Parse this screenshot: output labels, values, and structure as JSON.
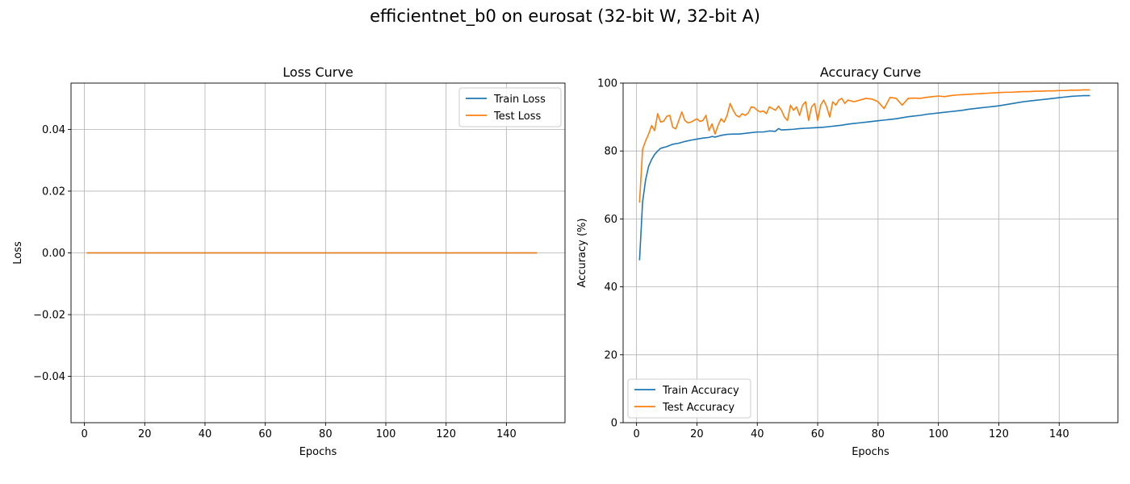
{
  "figure": {
    "title": "efficientnet_b0 on eurosat (32-bit W, 32-bit A)"
  },
  "chart_data": [
    {
      "type": "line",
      "title": "Loss Curve",
      "xlabel": "Epochs",
      "ylabel": "Loss",
      "xlim": [
        -4.45,
        159.45
      ],
      "ylim": [
        -0.055,
        0.055
      ],
      "xticks": [
        0,
        20,
        40,
        60,
        80,
        100,
        120,
        140
      ],
      "xtick_labels": [
        "0",
        "20",
        "40",
        "60",
        "80",
        "100",
        "120",
        "140"
      ],
      "yticks": [
        -0.04,
        -0.02,
        0.0,
        0.02,
        0.04
      ],
      "ytick_labels": [
        "−0.04",
        "−0.02",
        "0.00",
        "0.02",
        "0.04"
      ],
      "grid": true,
      "legend": "top-right",
      "series": [
        {
          "name": "Train Loss",
          "color": "#1f77b4",
          "x_start": 1,
          "x_end": 150,
          "constant": 0.0
        },
        {
          "name": "Test Loss",
          "color": "#ff7f0e",
          "x_start": 1,
          "x_end": 150,
          "constant": 0.0
        }
      ]
    },
    {
      "type": "line",
      "title": "Accuracy Curve",
      "xlabel": "Epochs",
      "ylabel": "Accuracy (%)",
      "xlim": [
        -4.45,
        159.45
      ],
      "ylim": [
        0,
        100
      ],
      "xticks": [
        0,
        20,
        40,
        60,
        80,
        100,
        120,
        140
      ],
      "xtick_labels": [
        "0",
        "20",
        "40",
        "60",
        "80",
        "100",
        "120",
        "140"
      ],
      "yticks": [
        0,
        20,
        40,
        60,
        80,
        100
      ],
      "ytick_labels": [
        "0",
        "20",
        "40",
        "60",
        "80",
        "100"
      ],
      "grid": true,
      "legend": "bottom-left",
      "series": [
        {
          "name": "Train Accuracy",
          "color": "#1f77b4",
          "x": [
            1,
            2,
            3,
            4,
            5,
            6,
            7,
            8,
            10,
            12,
            14,
            16,
            18,
            20,
            22,
            24,
            25,
            26,
            28,
            30,
            32,
            34,
            36,
            38,
            40,
            42,
            44,
            46,
            47,
            48,
            50,
            52,
            54,
            56,
            58,
            60,
            62,
            64,
            66,
            68,
            70,
            72,
            74,
            76,
            78,
            80,
            82,
            84,
            86,
            88,
            90,
            92,
            94,
            96,
            98,
            100,
            102,
            104,
            106,
            108,
            110,
            112,
            114,
            116,
            118,
            120,
            122,
            124,
            126,
            128,
            130,
            132,
            134,
            136,
            138,
            140,
            142,
            144,
            146,
            148,
            150
          ],
          "values": [
            48.0,
            65.0,
            71.5,
            75.5,
            77.5,
            79.0,
            80.0,
            80.8,
            81.3,
            82.0,
            82.3,
            82.8,
            83.2,
            83.5,
            83.8,
            84.0,
            84.3,
            84.1,
            84.6,
            84.9,
            85.0,
            85.0,
            85.2,
            85.4,
            85.6,
            85.6,
            85.9,
            85.8,
            86.6,
            86.2,
            86.3,
            86.4,
            86.6,
            86.7,
            86.8,
            86.9,
            87.0,
            87.2,
            87.4,
            87.6,
            87.9,
            88.1,
            88.3,
            88.5,
            88.7,
            88.9,
            89.1,
            89.3,
            89.5,
            89.8,
            90.1,
            90.3,
            90.5,
            90.8,
            91.0,
            91.2,
            91.4,
            91.6,
            91.8,
            92.0,
            92.3,
            92.5,
            92.7,
            92.9,
            93.1,
            93.3,
            93.6,
            93.9,
            94.2,
            94.5,
            94.7,
            94.9,
            95.1,
            95.3,
            95.5,
            95.7,
            95.9,
            96.1,
            96.2,
            96.3,
            96.3
          ]
        },
        {
          "name": "Test Accuracy",
          "color": "#ff7f0e",
          "x": [
            1,
            2,
            3,
            4,
            5,
            6,
            7,
            8,
            9,
            10,
            11,
            12,
            13,
            14,
            15,
            16,
            17,
            18,
            19,
            20,
            21,
            22,
            23,
            24,
            25,
            26,
            27,
            28,
            29,
            30,
            31,
            32,
            33,
            34,
            35,
            36,
            37,
            38,
            39,
            40,
            41,
            42,
            43,
            44,
            45,
            46,
            47,
            48,
            49,
            50,
            51,
            52,
            53,
            54,
            55,
            56,
            57,
            58,
            59,
            60,
            61,
            62,
            63,
            64,
            65,
            66,
            67,
            68,
            69,
            70,
            72,
            74,
            76,
            78,
            80,
            82,
            84,
            86,
            88,
            90,
            92,
            94,
            96,
            98,
            100,
            102,
            104,
            106,
            108,
            110,
            112,
            114,
            116,
            118,
            120,
            122,
            124,
            126,
            128,
            130,
            132,
            134,
            136,
            138,
            140,
            142,
            144,
            146,
            148,
            150
          ],
          "values": [
            65.0,
            80.5,
            83.0,
            85.0,
            87.5,
            86.0,
            91.0,
            88.5,
            88.8,
            90.2,
            90.5,
            87.0,
            86.5,
            89.0,
            91.5,
            89.0,
            88.3,
            88.5,
            89.0,
            89.5,
            88.7,
            89.0,
            90.5,
            86.0,
            88.0,
            85.0,
            87.5,
            89.5,
            88.5,
            90.5,
            94.0,
            92.0,
            90.5,
            90.0,
            91.0,
            90.5,
            91.2,
            93.0,
            92.8,
            92.0,
            91.5,
            91.8,
            91.0,
            93.0,
            92.5,
            92.0,
            93.2,
            92.0,
            90.0,
            89.0,
            93.5,
            92.0,
            93.0,
            90.5,
            93.5,
            94.5,
            89.0,
            93.0,
            94.0,
            89.0,
            93.5,
            95.0,
            93.0,
            90.0,
            94.5,
            93.5,
            95.0,
            95.5,
            94.0,
            95.0,
            94.5,
            95.0,
            95.5,
            95.3,
            94.5,
            92.5,
            95.8,
            95.5,
            93.5,
            95.5,
            95.6,
            95.5,
            95.8,
            96.0,
            96.2,
            96.0,
            96.3,
            96.5,
            96.6,
            96.7,
            96.8,
            96.9,
            97.0,
            97.1,
            97.2,
            97.3,
            97.3,
            97.4,
            97.5,
            97.5,
            97.6,
            97.6,
            97.7,
            97.7,
            97.8,
            97.8,
            97.9,
            97.9,
            98.0,
            98.0
          ]
        }
      ]
    }
  ]
}
